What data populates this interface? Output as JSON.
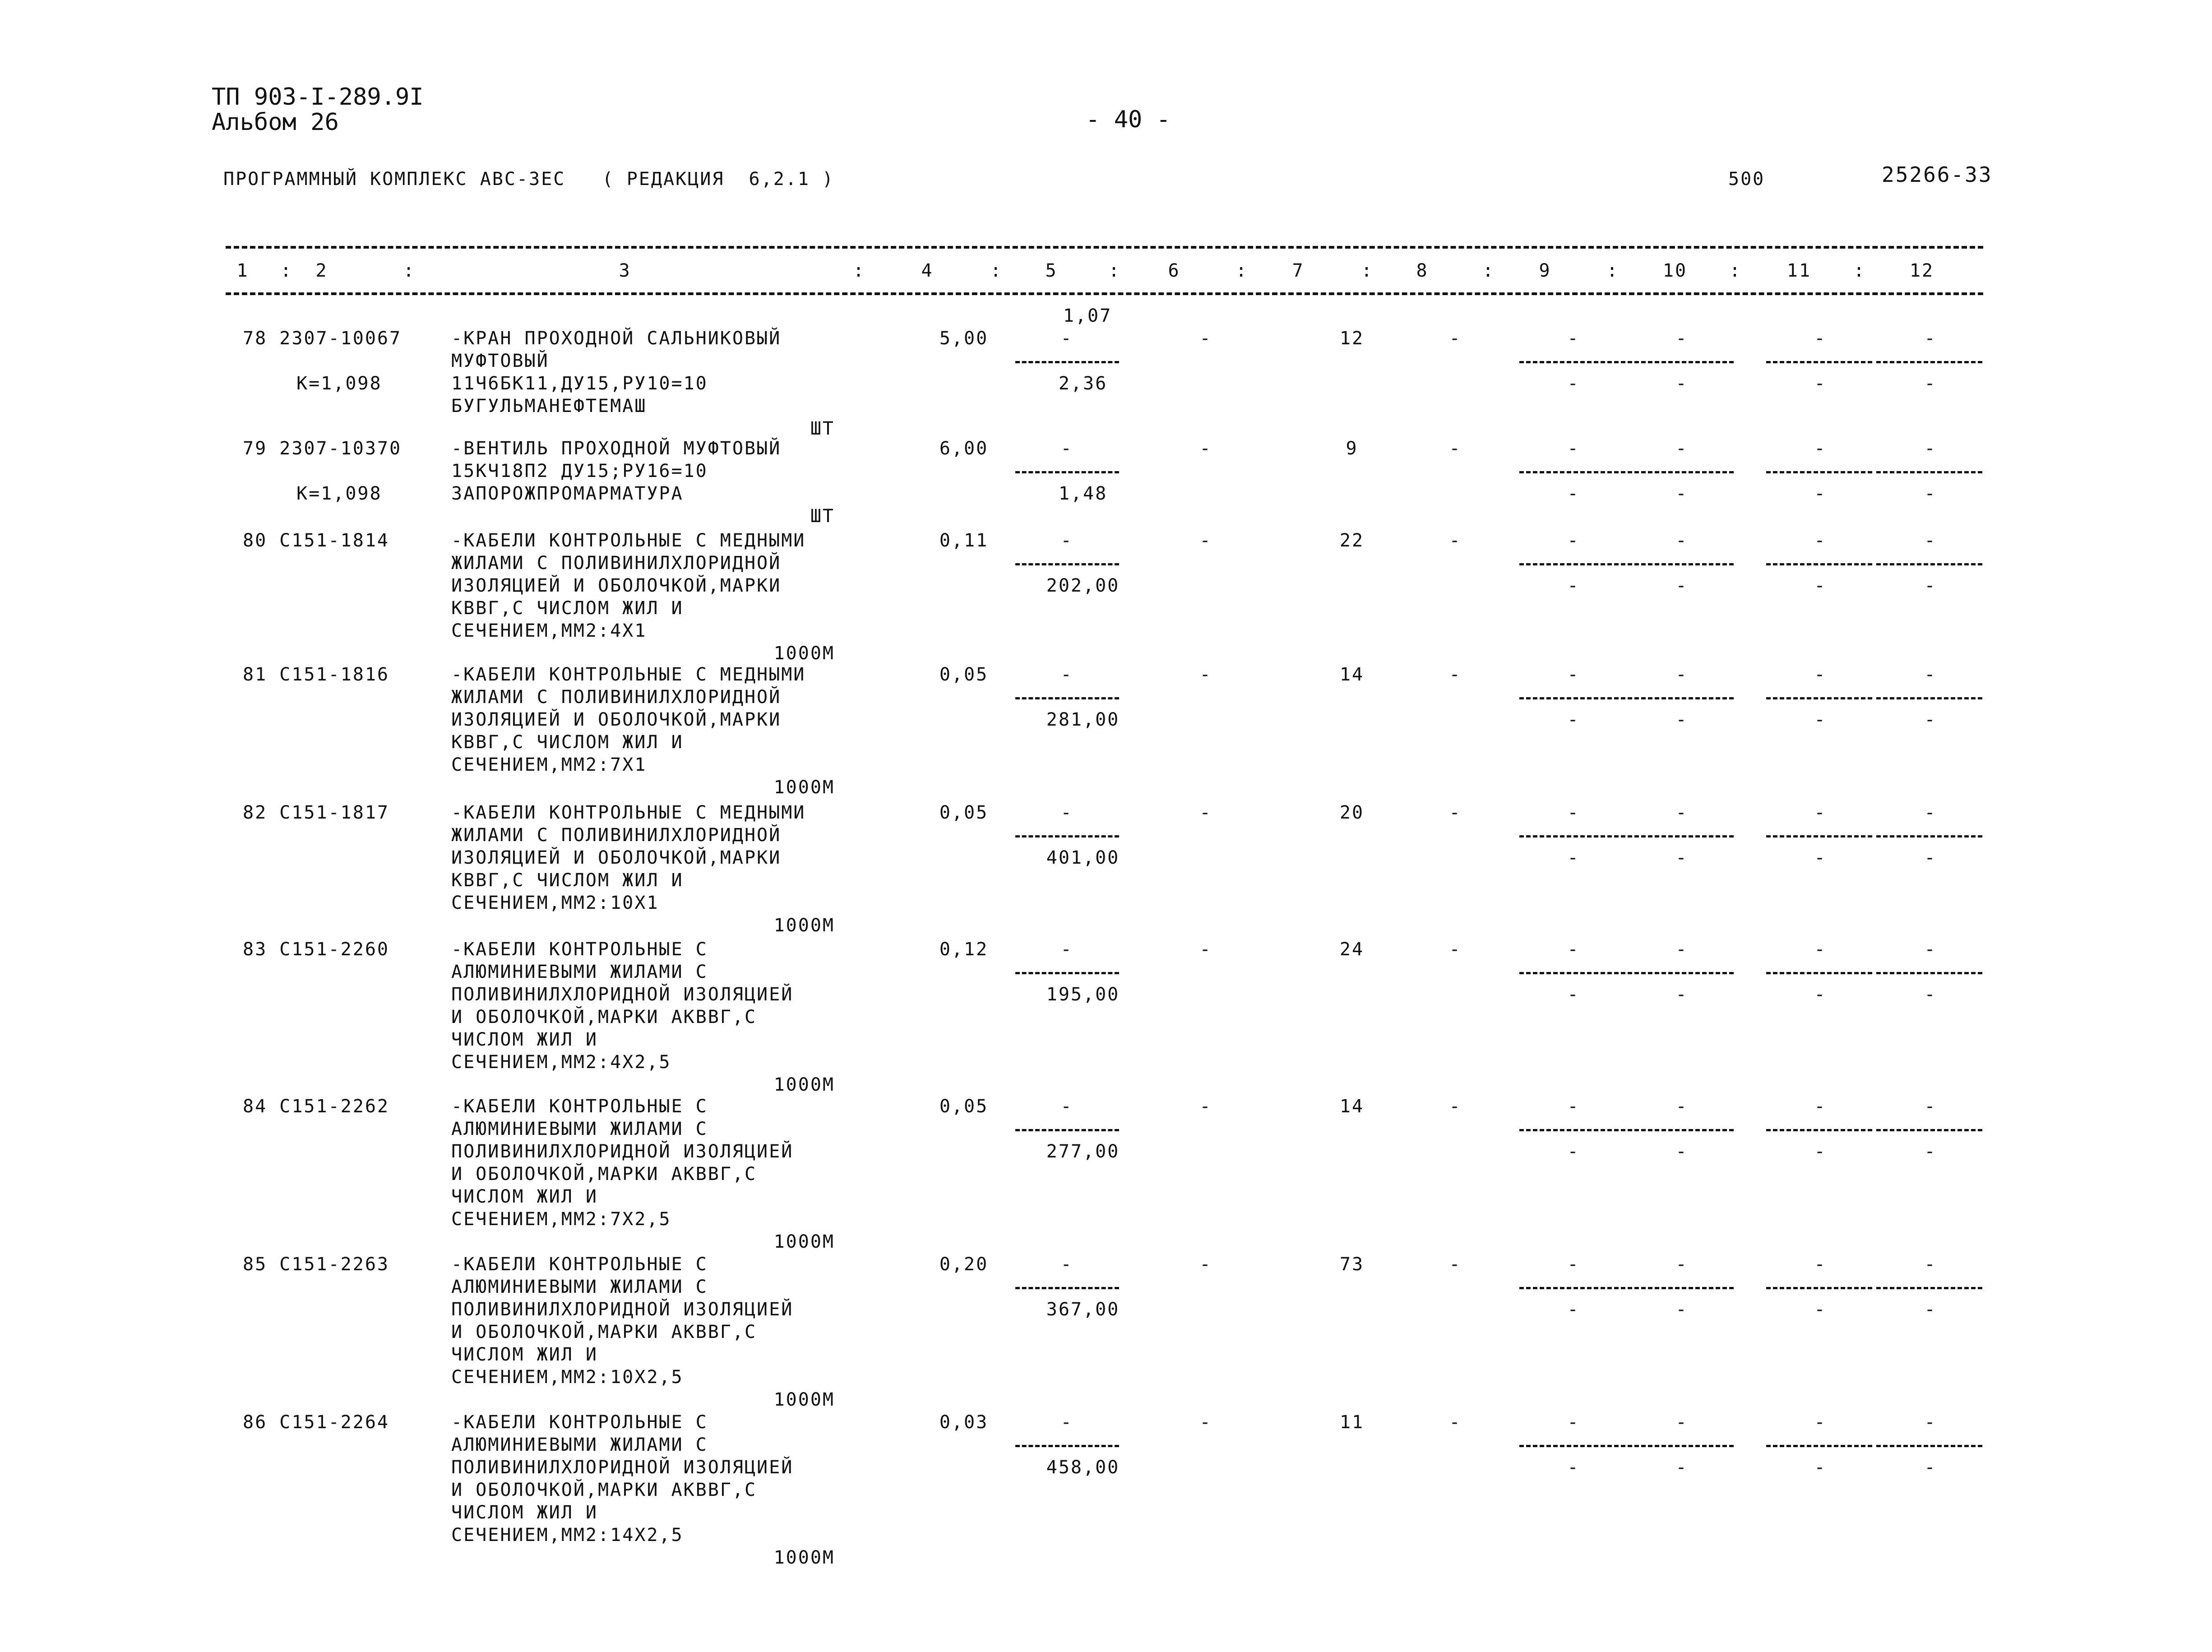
{
  "header": {
    "doc_code": "ТП 903-I-289.9I",
    "album": "Альбом 26",
    "page_number": "- 40 -",
    "program_line": "ПРОГРАММНЫЙ КОМПЛЕКС АВС-3ЕС   ( РЕДАКЦИЯ  6,2.1 )",
    "code_a": "500",
    "code_b": "25266-33"
  },
  "columns": [
    "1",
    ":",
    "2",
    ":",
    "3",
    ":",
    "4",
    ":",
    "5",
    ":",
    "6",
    ":",
    "7",
    ":",
    "8",
    ":",
    "9",
    ":",
    "10",
    ":",
    "11",
    ":",
    "12"
  ],
  "rows": [
    {
      "num": "78",
      "code": "2307-10067",
      "k": "К=1,098",
      "desc": [
        "-КРАН ПРОХОДНОЙ САЛЬНИКОВЫЙ",
        "МУФТОВЫЙ",
        "11Ч6БК11,ДУ15,РУ10=10",
        "БУГУЛЬМАНЕФТЕМАШ"
      ],
      "unit": "ШТ",
      "col4": "5,00",
      "col5_top": "1,07",
      "col5_dash": "-",
      "col5_bottom": "2,36",
      "col6": "-",
      "col7": "12",
      "col8": "-"
    },
    {
      "num": "79",
      "code": "2307-10370",
      "k": "К=1,098",
      "desc": [
        "-ВЕНТИЛЬ ПРОХОДНОЙ МУФТОВЫЙ",
        "15КЧ18П2 ДУ15;РУ16=10",
        "ЗАПОРОЖПРОМАРМАТУРА"
      ],
      "unit": "ШТ",
      "col4": "6,00",
      "col5_top": "",
      "col5_dash": "-",
      "col5_bottom": "1,48",
      "col6": "-",
      "col7": "9",
      "col8": "-"
    },
    {
      "num": "80",
      "code": "С151-1814",
      "k": "",
      "desc": [
        "-КАБЕЛИ КОНТРОЛЬНЫЕ С МЕДНЫМИ",
        "ЖИЛАМИ С ПОЛИВИНИЛХЛОРИДНОЙ",
        "ИЗОЛЯЦИЕЙ И ОБОЛОЧКОЙ,МАРКИ",
        "КВВГ,С ЧИСЛОМ ЖИЛ И",
        "СЕЧЕНИЕМ,ММ2:4Х1"
      ],
      "unit": "1000М",
      "col4": "0,11",
      "col5_top": "",
      "col5_dash": "-",
      "col5_bottom": "202,00",
      "col6": "-",
      "col7": "22",
      "col8": "-"
    },
    {
      "num": "81",
      "code": "С151-1816",
      "k": "",
      "desc": [
        "-КАБЕЛИ КОНТРОЛЬНЫЕ С МЕДНЫМИ",
        "ЖИЛАМИ С ПОЛИВИНИЛХЛОРИДНОЙ",
        "ИЗОЛЯЦИЕЙ И ОБОЛОЧКОЙ,МАРКИ",
        "КВВГ,С ЧИСЛОМ ЖИЛ И",
        "СЕЧЕНИЕМ,ММ2:7Х1"
      ],
      "unit": "1000М",
      "col4": "0,05",
      "col5_top": "",
      "col5_dash": "-",
      "col5_bottom": "281,00",
      "col6": "-",
      "col7": "14",
      "col8": "-"
    },
    {
      "num": "82",
      "code": "С151-1817",
      "k": "",
      "desc": [
        "-КАБЕЛИ КОНТРОЛЬНЫЕ С МЕДНЫМИ",
        "ЖИЛАМИ С ПОЛИВИНИЛХЛОРИДНОЙ",
        "ИЗОЛЯЦИЕЙ И ОБОЛОЧКОЙ,МАРКИ",
        "КВВГ,С ЧИСЛОМ ЖИЛ И",
        "СЕЧЕНИЕМ,ММ2:10Х1"
      ],
      "unit": "1000М",
      "col4": "0,05",
      "col5_top": "",
      "col5_dash": "-",
      "col5_bottom": "401,00",
      "col6": "-",
      "col7": "20",
      "col8": "-"
    },
    {
      "num": "83",
      "code": "С151-2260",
      "k": "",
      "desc": [
        "-КАБЕЛИ КОНТРОЛЬНЫЕ С",
        "АЛЮМИНИЕВЫМИ ЖИЛАМИ С",
        "ПОЛИВИНИЛХЛОРИДНОЙ ИЗОЛЯЦИЕЙ",
        "И ОБОЛОЧКОЙ,МАРКИ АКВВГ,С",
        "ЧИСЛОМ ЖИЛ И",
        "СЕЧЕНИЕМ,ММ2:4Х2,5"
      ],
      "unit": "1000М",
      "col4": "0,12",
      "col5_top": "",
      "col5_dash": "-",
      "col5_bottom": "195,00",
      "col6": "-",
      "col7": "24",
      "col8": "-"
    },
    {
      "num": "84",
      "code": "С151-2262",
      "k": "",
      "desc": [
        "-КАБЕЛИ КОНТРОЛЬНЫЕ С",
        "АЛЮМИНИЕВЫМИ ЖИЛАМИ С",
        "ПОЛИВИНИЛХЛОРИДНОЙ ИЗОЛЯЦИЕЙ",
        "И ОБОЛОЧКОЙ,МАРКИ АКВВГ,С",
        "ЧИСЛОМ ЖИЛ И",
        "СЕЧЕНИЕМ,ММ2:7Х2,5"
      ],
      "unit": "1000М",
      "col4": "0,05",
      "col5_top": "",
      "col5_dash": "-",
      "col5_bottom": "277,00",
      "col6": "-",
      "col7": "14",
      "col8": "-"
    },
    {
      "num": "85",
      "code": "С151-2263",
      "k": "",
      "desc": [
        "-КАБЕЛИ КОНТРОЛЬНЫЕ С",
        "АЛЮМИНИЕВЫМИ ЖИЛАМИ С",
        "ПОЛИВИНИЛХЛОРИДНОЙ ИЗОЛЯЦИЕЙ",
        "И ОБОЛОЧКОЙ,МАРКИ АКВВГ,С",
        "ЧИСЛОМ ЖИЛ И",
        "СЕЧЕНИЕМ,ММ2:10Х2,5"
      ],
      "unit": "1000М",
      "col4": "0,20",
      "col5_top": "",
      "col5_dash": "-",
      "col5_bottom": "367,00",
      "col6": "-",
      "col7": "73",
      "col8": "-"
    },
    {
      "num": "86",
      "code": "С151-2264",
      "k": "",
      "desc": [
        "-КАБЕЛИ КОНТРОЛЬНЫЕ С",
        "АЛЮМИНИЕВЫМИ ЖИЛАМИ С",
        "ПОЛИВИНИЛХЛОРИДНОЙ ИЗОЛЯЦИЕЙ",
        "И ОБОЛОЧКОЙ,МАРКИ АКВВГ,С",
        "ЧИСЛОМ ЖИЛ И",
        "СЕЧЕНИЕМ,ММ2:14Х2,5"
      ],
      "unit": "1000М",
      "col4": "0,03",
      "col5_top": "",
      "col5_dash": "-",
      "col5_bottom": "458,00",
      "col6": "-",
      "col7": "11",
      "col8": "-"
    }
  ],
  "empty_cell_mark": "-"
}
